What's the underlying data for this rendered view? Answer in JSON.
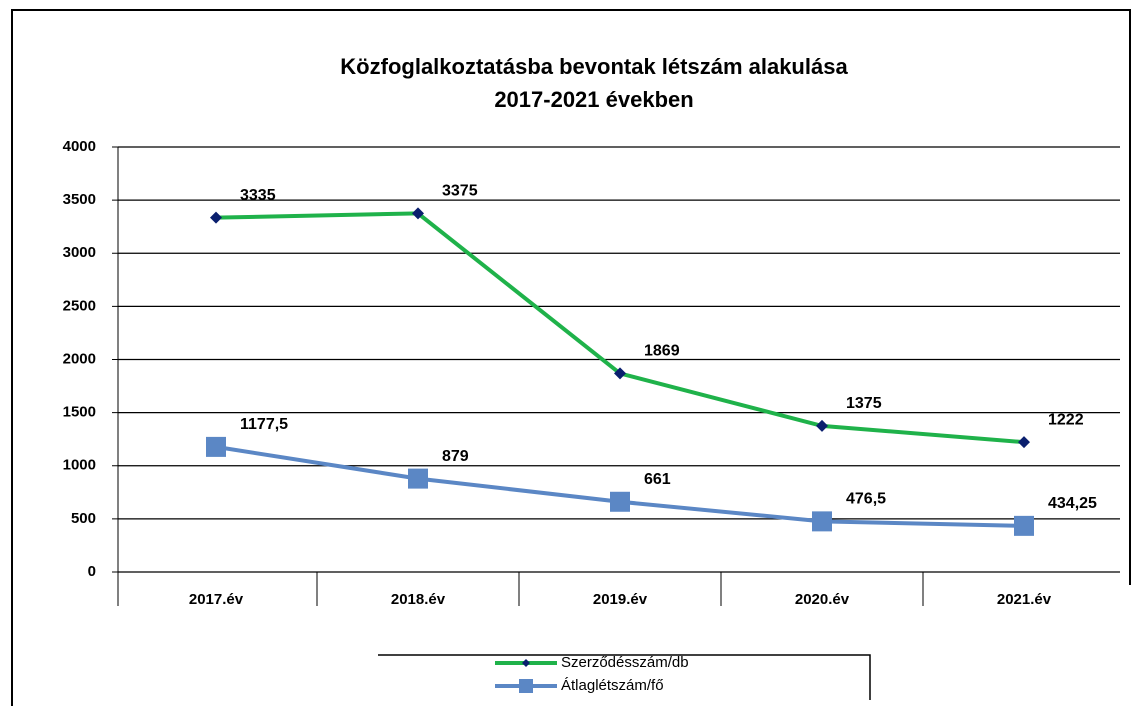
{
  "chart_data": {
    "type": "line",
    "title": [
      "Közfoglalkoztatásba bevontak létszám alakulása",
      "2017-2021 években"
    ],
    "categories": [
      "2017.év",
      "2018.év",
      "2019.év",
      "2020.év",
      "2021.év"
    ],
    "series": [
      {
        "name": "Szerződésszám/db",
        "color": "#1fb24a",
        "marker": "diamond",
        "marker_color": "#0a1f6e",
        "values": [
          3335,
          3375,
          1869,
          1375,
          1222
        ]
      },
      {
        "name": "Átlaglétszám/fő",
        "color": "#5b87c5",
        "marker": "square",
        "marker_color": "#5b87c5",
        "values": [
          1177.5,
          879,
          661,
          476.5,
          434.25
        ],
        "value_labels": [
          "1177,5",
          "879",
          "661",
          "476,5",
          "434,25"
        ]
      }
    ],
    "ylim": [
      0,
      4000
    ],
    "yticks": [
      0,
      500,
      1000,
      1500,
      2000,
      2500,
      3000,
      3500,
      4000
    ],
    "grid": true
  }
}
